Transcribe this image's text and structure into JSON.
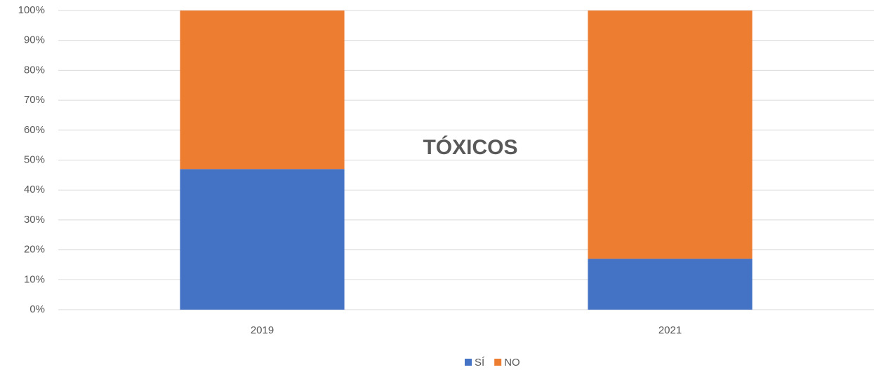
{
  "chart_data": {
    "type": "stacked_bar",
    "title": "TÓXICOS",
    "categories": [
      "2019",
      "2021"
    ],
    "series": [
      {
        "name": "SÍ",
        "color": "#4472c4",
        "values": [
          47,
          17
        ]
      },
      {
        "name": "NO",
        "color": "#ed7d31",
        "values": [
          53,
          83
        ]
      }
    ],
    "ylim": [
      0,
      100
    ],
    "yticks": [
      {
        "value": 0,
        "label": "0%"
      },
      {
        "value": 10,
        "label": "10%"
      },
      {
        "value": 20,
        "label": "20%"
      },
      {
        "value": 30,
        "label": "30%"
      },
      {
        "value": 40,
        "label": "40%"
      },
      {
        "value": 50,
        "label": "50%"
      },
      {
        "value": 60,
        "label": "60%"
      },
      {
        "value": 70,
        "label": "70%"
      },
      {
        "value": 80,
        "label": "80%"
      },
      {
        "value": 90,
        "label": "90%"
      },
      {
        "value": 100,
        "label": "100%"
      }
    ],
    "grid": true,
    "legend": "bottom"
  }
}
